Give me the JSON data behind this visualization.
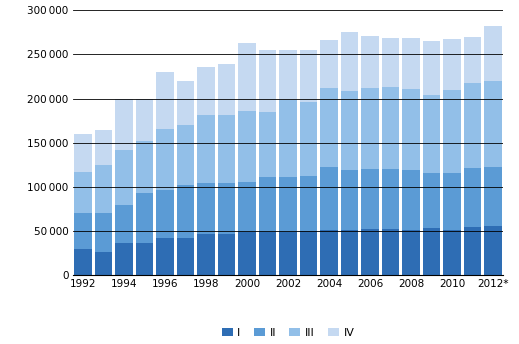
{
  "years": [
    1992,
    1993,
    1994,
    1995,
    1996,
    1997,
    1998,
    1999,
    2000,
    2001,
    2002,
    2003,
    2004,
    2005,
    2006,
    2007,
    2008,
    2009,
    2010,
    2011,
    2012
  ],
  "Q1": [
    30000,
    26000,
    36000,
    36000,
    42000,
    42000,
    47000,
    47000,
    49000,
    49000,
    49000,
    50000,
    51000,
    51000,
    52000,
    52000,
    51000,
    54000,
    51000,
    55000,
    56000
  ],
  "Q2": [
    40000,
    44000,
    44000,
    57000,
    54000,
    60000,
    57000,
    57000,
    57000,
    62000,
    62000,
    62000,
    71000,
    68000,
    68000,
    68000,
    68000,
    62000,
    65000,
    66000,
    67000
  ],
  "Q3": [
    47000,
    55000,
    62000,
    59000,
    70000,
    68000,
    78000,
    78000,
    80000,
    74000,
    87000,
    84000,
    90000,
    90000,
    92000,
    93000,
    92000,
    88000,
    94000,
    97000,
    97000
  ],
  "Q4": [
    43000,
    40000,
    58000,
    47000,
    64000,
    50000,
    54000,
    57000,
    77000,
    70000,
    57000,
    59000,
    54000,
    67000,
    59000,
    56000,
    58000,
    61000,
    58000,
    52000,
    62000
  ],
  "colors": [
    "#2e6db4",
    "#5b9bd5",
    "#92bfe8",
    "#c5d9f1"
  ],
  "legend_labels": [
    "I",
    "II",
    "III",
    "IV"
  ],
  "ylim_max": 300000,
  "yticks": [
    0,
    50000,
    100000,
    150000,
    200000,
    250000,
    300000
  ],
  "bar_width": 0.85,
  "figsize": [
    5.19,
    3.44
  ],
  "dpi": 100
}
